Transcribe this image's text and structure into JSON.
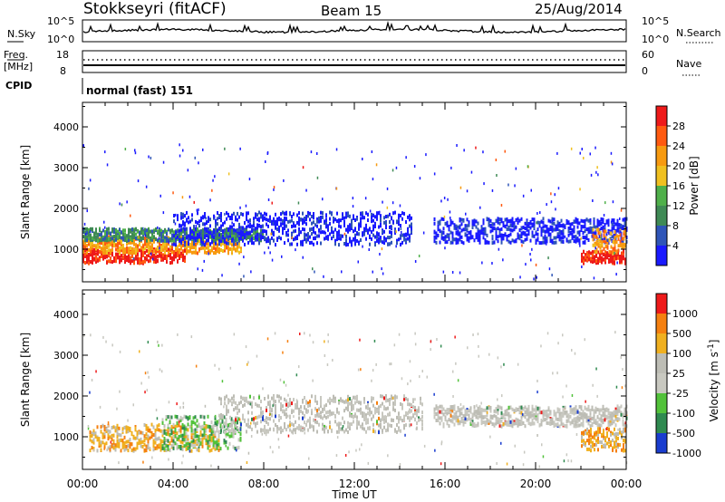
{
  "header": {
    "station": "Stokkseyri (fitACF)",
    "beam": "Beam 15",
    "date": "25/Aug/2014"
  },
  "top_panels": {
    "nsky": {
      "label": "N.Sky",
      "top_tick": "10^5",
      "bottom_tick": "10^0"
    },
    "nsearch": {
      "label": "N.Search",
      "top_tick": "10^5",
      "bottom_tick": "10^0"
    },
    "freq": {
      "label_line1": "Freq.",
      "label_line2": "[MHz]",
      "top_tick": "18",
      "bottom_tick": "8"
    },
    "nave": {
      "label": "Nave",
      "top_tick": "60",
      "bottom_tick": "0"
    },
    "cpid": {
      "label": "CPID",
      "mode": "normal (fast) 151"
    }
  },
  "chart_data": [
    {
      "type": "heatmap",
      "panel": "power",
      "ylabel": "Slant Range [km]",
      "yticks": [
        "1000",
        "2000",
        "3000",
        "4000"
      ],
      "ylim": [
        200,
        4600
      ],
      "colorbar": {
        "label": "Power [dB]",
        "ticks": [
          "4",
          "8",
          "12",
          "16",
          "20",
          "24",
          "28"
        ]
      },
      "bands": [
        {
          "x_start_h": 0.0,
          "x_end_h": 4.5,
          "y_low_km": 650,
          "y_high_km": 1000,
          "level": "red"
        },
        {
          "x_start_h": 0.0,
          "x_end_h": 7.0,
          "y_low_km": 900,
          "y_high_km": 1300,
          "level": "orange"
        },
        {
          "x_start_h": 0.0,
          "x_end_h": 8.0,
          "y_low_km": 1200,
          "y_high_km": 1500,
          "level": "green"
        },
        {
          "x_start_h": 4.0,
          "x_end_h": 14.5,
          "y_low_km": 1100,
          "y_high_km": 1900,
          "level": "blue"
        },
        {
          "x_start_h": 15.5,
          "x_end_h": 24.0,
          "y_low_km": 1150,
          "y_high_km": 1750,
          "level": "blue"
        },
        {
          "x_start_h": 22.0,
          "x_end_h": 24.0,
          "y_low_km": 650,
          "y_high_km": 950,
          "level": "red"
        },
        {
          "x_start_h": 22.5,
          "x_end_h": 24.0,
          "y_low_km": 900,
          "y_high_km": 1500,
          "level": "orange"
        }
      ]
    },
    {
      "type": "heatmap",
      "panel": "velocity",
      "ylabel": "Slant Range [km]",
      "yticks": [
        "1000",
        "2000",
        "3000",
        "4000"
      ],
      "ylim": [
        200,
        4600
      ],
      "xlabel": "Time UT",
      "xticks": [
        "00:00",
        "04:00",
        "08:00",
        "12:00",
        "16:00",
        "20:00",
        "00:00"
      ],
      "colorbar": {
        "label": "Velocity [m s^-1]",
        "ticks": [
          "1000",
          "500",
          "100",
          "25",
          "-25",
          "-100",
          "-500",
          "-1000"
        ]
      },
      "bands": [
        {
          "x_start_h": 0.3,
          "x_end_h": 6.0,
          "y_low_km": 650,
          "y_high_km": 1300,
          "level": "orange"
        },
        {
          "x_start_h": 3.5,
          "x_end_h": 7.0,
          "y_low_km": 700,
          "y_high_km": 1500,
          "level": "green"
        },
        {
          "x_start_h": 6.0,
          "x_end_h": 15.0,
          "y_low_km": 1100,
          "y_high_km": 2000,
          "level": "gray"
        },
        {
          "x_start_h": 15.5,
          "x_end_h": 24.0,
          "y_low_km": 1250,
          "y_high_km": 1750,
          "level": "gray"
        },
        {
          "x_start_h": 22.0,
          "x_end_h": 24.0,
          "y_low_km": 650,
          "y_high_km": 1200,
          "level": "orange"
        }
      ]
    }
  ],
  "colors": {
    "power": [
      "#1a1aff",
      "#2f55b8",
      "#3f8a55",
      "#4fb04a",
      "#f0c020",
      "#f79a10",
      "#ff5a10",
      "#ee1a1a"
    ],
    "velocity": [
      "#1a3dcf",
      "#2f8a50",
      "#52c23a",
      "#c8c8c0",
      "#bdbdb5",
      "#f0b020",
      "#f58010",
      "#ee1a1a"
    ]
  }
}
